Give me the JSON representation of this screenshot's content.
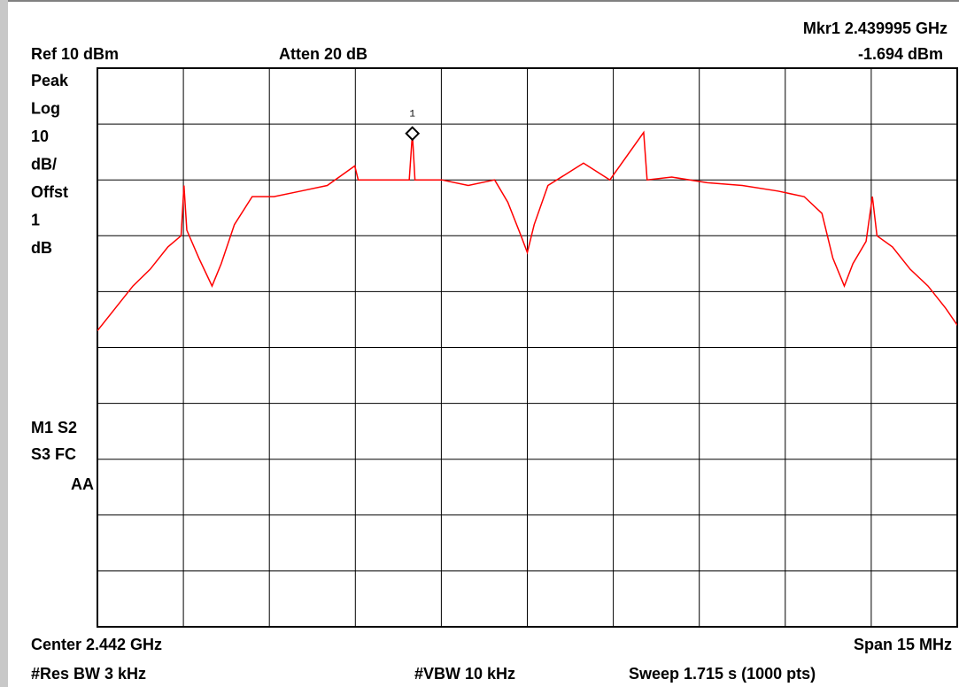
{
  "chart_data": {
    "type": "line",
    "header": [
      "Mkr1 2.439995 GHz",
      "Ref 10 dBm",
      "Atten 20 dB",
      "-1.694 dBm"
    ],
    "left_panel": [
      "Peak",
      "Log",
      "10",
      "dB/",
      "Offst",
      "1",
      "dB"
    ],
    "status": [
      "M1 S2",
      "S3 FC",
      "AA"
    ],
    "footer": [
      "Center 2.442 GHz",
      "Span 15 MHz",
      "#Res BW 3 kHz",
      "#VBW 10 kHz",
      "Sweep 1.715 s (1000 pts)"
    ],
    "marker": {
      "label": "1",
      "x": 2.439995,
      "y": -1.694
    },
    "x": [
      2.4345,
      2.43481,
      2.43512,
      2.43542,
      2.43573,
      2.43596,
      2.43601,
      2.43606,
      2.43627,
      2.4365,
      2.43666,
      2.43689,
      2.4372,
      2.43758,
      2.43805,
      2.43851,
      2.43899,
      2.43905,
      2.43959,
      2.43994,
      2.439995,
      2.44004,
      2.44051,
      2.44097,
      2.44143,
      2.44166,
      2.44189,
      2.442,
      2.44212,
      2.44236,
      2.44298,
      2.44344,
      2.44403,
      2.44409,
      2.44452,
      2.44514,
      2.44575,
      2.44637,
      2.44683,
      2.44714,
      2.44733,
      2.44753,
      2.44768,
      2.44791,
      2.44802,
      2.4481,
      2.44837,
      2.44868,
      2.44899,
      2.4493,
      2.4495
    ],
    "series": [
      {
        "color": "#ff0000",
        "values": [
          -37,
          -33,
          -29,
          -26,
          -22,
          -20,
          -11,
          -19,
          -24,
          -29,
          -25,
          -18,
          -13,
          -13,
          -12,
          -11,
          -7.5,
          -10,
          -10,
          -10,
          -1.7,
          -10,
          -10,
          -11,
          -10,
          -14,
          -20,
          -23,
          -18,
          -11,
          -7,
          -10,
          -1.5,
          -10,
          -9.5,
          -10.5,
          -11,
          -12,
          -13,
          -16,
          -24,
          -29,
          -25,
          -21,
          -13,
          -20,
          -22,
          -26,
          -29,
          -33,
          -36
        ]
      }
    ],
    "xlim": [
      2.4345,
      2.4495
    ],
    "xticks": [
      2.4345,
      2.436,
      2.4375,
      2.439,
      2.4405,
      2.442,
      2.4435,
      2.445,
      2.4465,
      2.448,
      2.4495
    ],
    "ylim": [
      -90,
      10
    ],
    "yticks": [
      -90,
      -80,
      -70,
      -60,
      -50,
      -40,
      -30,
      -20,
      -10,
      0,
      10
    ],
    "grid": true
  }
}
